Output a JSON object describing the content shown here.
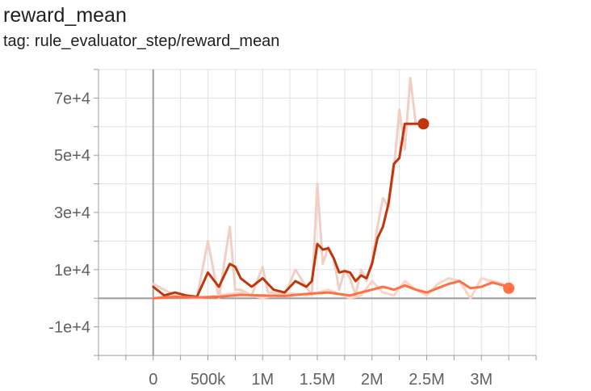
{
  "title": "reward_mean",
  "subtitle": "tag: rule_evaluator_step/reward_mean",
  "chart_data": {
    "type": "line",
    "title": "reward_mean",
    "subtitle": "tag: rule_evaluator_step/reward_mean",
    "xlim": [
      -500000,
      3500000
    ],
    "ylim": [
      -20000,
      80000
    ],
    "x_ticks": [
      0,
      500000,
      1000000,
      1500000,
      2000000,
      2500000,
      3000000
    ],
    "x_tick_labels": [
      "0",
      "500k",
      "1M",
      "1.5M",
      "2M",
      "2.5M",
      "3M"
    ],
    "y_ticks": [
      -10000,
      10000,
      30000,
      50000,
      70000
    ],
    "y_tick_labels": [
      "-1e+4",
      "1e+4",
      "3e+4",
      "5e+4",
      "7e+4"
    ],
    "grid": true,
    "series": [
      {
        "color": "#bf360c",
        "raw_color": "#f2cfc5",
        "x": [
          0,
          100000,
          200000,
          300000,
          400000,
          500000,
          600000,
          700000,
          750000,
          800000,
          900000,
          1000000,
          1050000,
          1100000,
          1200000,
          1300000,
          1400000,
          1450000,
          1500000,
          1550000,
          1600000,
          1650000,
          1700000,
          1750000,
          1800000,
          1850000,
          1900000,
          1950000,
          2000000,
          2050000,
          2100000,
          2150000,
          2200000,
          2250000,
          2300000,
          2350000,
          2400000,
          2450000,
          2470000
        ],
        "values": [
          4000,
          1000,
          2000,
          1000,
          500,
          9000,
          4000,
          12000,
          11000,
          7000,
          4000,
          7000,
          5000,
          3000,
          2000,
          6000,
          4000,
          6000,
          19000,
          17000,
          17500,
          14000,
          9000,
          9500,
          9000,
          6000,
          8000,
          7000,
          12000,
          21000,
          25000,
          33000,
          47000,
          49000,
          61000,
          61000,
          61000,
          61000,
          61000
        ],
        "raw": [
          5000,
          3000,
          1000,
          500,
          0,
          20000,
          0,
          25000,
          3000,
          3000,
          1000,
          11000,
          2000,
          2000,
          1000,
          10000,
          4000,
          1000,
          40000,
          12000,
          18000,
          14000,
          3000,
          10000,
          7000,
          1000,
          10000,
          6000,
          13000,
          25000,
          35000,
          32000,
          45000,
          66000,
          52000,
          77000,
          61000,
          61000,
          61000
        ],
        "end_value": 61000
      },
      {
        "color": "#ff7043",
        "raw_color": "#fbd4c5",
        "x": [
          0,
          200000,
          400000,
          600000,
          800000,
          1000000,
          1200000,
          1400000,
          1600000,
          1800000,
          1900000,
          2000000,
          2100000,
          2200000,
          2300000,
          2400000,
          2500000,
          2600000,
          2700000,
          2800000,
          2900000,
          3000000,
          3100000,
          3200000,
          3250000
        ],
        "values": [
          0,
          500,
          300,
          500,
          1200,
          1000,
          800,
          1500,
          2000,
          1000,
          2000,
          3000,
          4000,
          3000,
          4500,
          3000,
          2000,
          3500,
          5000,
          6000,
          3500,
          4000,
          5500,
          4500,
          3500
        ],
        "raw": [
          0,
          1000,
          0,
          1000,
          2000,
          0,
          2000,
          1000,
          3000,
          0,
          1000,
          6000,
          2000,
          1000,
          6000,
          3000,
          1000,
          5000,
          7000,
          6000,
          0,
          7000,
          6000,
          5000,
          3500
        ],
        "end_value": 3500
      }
    ]
  }
}
